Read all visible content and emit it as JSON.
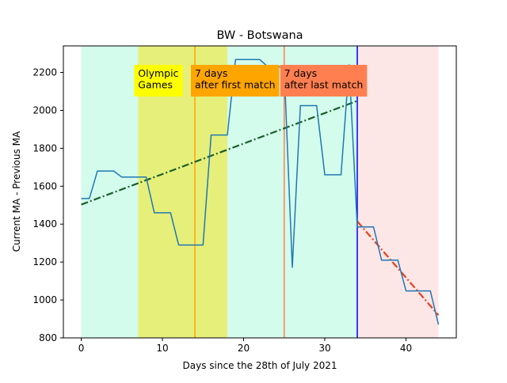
{
  "chart_data": {
    "type": "line",
    "title": "BW - Botswana",
    "xlabel": "Days since the 28th of July 2021",
    "ylabel": "Current MA - Previous MA",
    "xlim": [
      -2.2,
      46.2
    ],
    "ylim": [
      800,
      2340
    ],
    "xticks": [
      0,
      10,
      20,
      30,
      40
    ],
    "yticks": [
      800,
      1000,
      1200,
      1400,
      1600,
      1800,
      2000,
      2200
    ],
    "grid": false,
    "colors": {
      "series": "#1f77b4",
      "trend_before": "#1a5e2a",
      "trend_after": "#e8401c",
      "shade_mint": "#d3fcec",
      "shade_olympic": "#e6ef7a",
      "shade_pink": "#fde6e6",
      "vline_orange": "#ffa500",
      "vline_coral": "#ff7f50",
      "vline_blue": "#0000ff",
      "label_yellow": "#ffff00",
      "label_orange": "#ffa500",
      "label_coral": "#ff7f50"
    },
    "shaded_regions": [
      {
        "x0": 0,
        "x1": 7,
        "color": "shade_mint"
      },
      {
        "x0": 7,
        "x1": 18,
        "color": "shade_olympic"
      },
      {
        "x0": 18,
        "x1": 34,
        "color": "shade_mint"
      },
      {
        "x0": 34,
        "x1": 44,
        "color": "shade_pink"
      }
    ],
    "vertical_lines": [
      {
        "x": 14,
        "color": "vline_orange"
      },
      {
        "x": 25,
        "color": "vline_coral"
      },
      {
        "x": 34,
        "color": "vline_blue"
      }
    ],
    "annotations": [
      {
        "lines": [
          "Olympic",
          "Games"
        ],
        "x": 7,
        "color": "label_yellow"
      },
      {
        "lines": [
          "7 days",
          "after first match"
        ],
        "x": 14,
        "color": "label_orange"
      },
      {
        "lines": [
          "7 days",
          "after last match"
        ],
        "x": 25,
        "color": "label_coral"
      }
    ],
    "series": [
      {
        "x": [
          0,
          1,
          2,
          3,
          4,
          5,
          6,
          7,
          8,
          9,
          10,
          11,
          12,
          13,
          14,
          15,
          16,
          17,
          18,
          19,
          20,
          21,
          22,
          23,
          24,
          25,
          26,
          27,
          28,
          29,
          30,
          31,
          32,
          33,
          34,
          35,
          36,
          37,
          38,
          39,
          40,
          41,
          42,
          43,
          44
        ],
        "values": [
          1535,
          1535,
          1680,
          1680,
          1680,
          1648,
          1648,
          1648,
          1648,
          1460,
          1460,
          1460,
          1290,
          1290,
          1290,
          1290,
          1870,
          1870,
          1870,
          2268,
          2268,
          2268,
          2268,
          2230,
          2230,
          2230,
          1172,
          2025,
          2025,
          2025,
          1660,
          1660,
          1660,
          2240,
          1385,
          1385,
          1385,
          1210,
          1210,
          1210,
          1048,
          1048,
          1048,
          1048,
          870
        ]
      }
    ],
    "trend_lines": [
      {
        "x": [
          0,
          34
        ],
        "values": [
          1503,
          2050
        ],
        "color": "trend_before"
      },
      {
        "x": [
          34,
          44
        ],
        "values": [
          1415,
          920
        ],
        "color": "trend_after"
      }
    ]
  }
}
